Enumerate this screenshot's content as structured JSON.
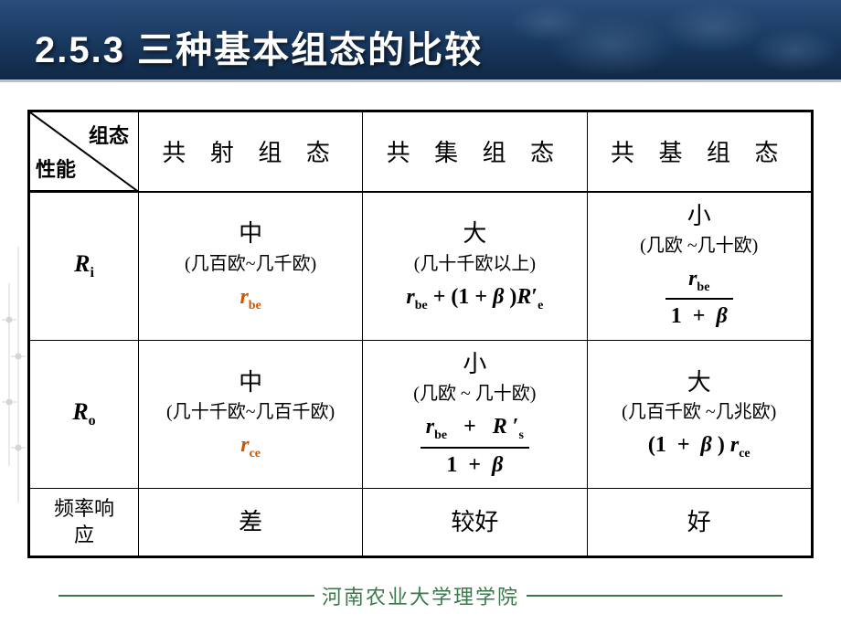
{
  "colors": {
    "header_gradient_top": "#2a4d7a",
    "header_gradient_bottom": "#0f2845",
    "accent": "#cc5500",
    "border": "#000000",
    "footer": "#3a7a4a",
    "background": "#ffffff"
  },
  "title": "2.5.3  三种基本组态的比较",
  "corner": {
    "top": "组态",
    "bottom": "性能"
  },
  "columns": [
    "共 射 组 态",
    "共 集 组 态",
    "共 基 组 态"
  ],
  "rows": {
    "ri": {
      "label_main": "R",
      "label_sub": "i",
      "ce": {
        "mag": "中",
        "range": "(几百欧~几千欧)",
        "expr_html": "<span class='it accent'>r</span><sub class='accent'>be</sub>"
      },
      "cc": {
        "mag": "大",
        "range": "(几十千欧以上)",
        "expr_html": "<span class='it'>r</span><sub>be</sub> + (1 + <span class='it'>β</span> )<span class='it'>R</span>′<sub>e</sub>"
      },
      "cb": {
        "mag": "小",
        "range": "(几欧 ~几十欧)",
        "expr_html": "<span class='frac'><span class='num'><span class='it'>r</span><sub>be</sub></span><span class='den'>1 &nbsp;+&nbsp; <span class='it'>β</span></span></span>"
      }
    },
    "ro": {
      "label_main": "R",
      "label_sub": "o",
      "ce": {
        "mag": "中",
        "range": "(几十千欧~几百千欧)",
        "expr_html": "<span class='it accent'>r</span><sub class='accent'>ce</sub>"
      },
      "cc": {
        "mag": "小",
        "range": "(几欧 ~ 几十欧)",
        "expr_html": "<span class='frac'><span class='num'><span class='it'>r</span><sub>be</sub> &nbsp; + &nbsp; <span class='it'>R</span> ′<sub>s</sub></span><span class='den'>1 &nbsp;+&nbsp; <span class='it'>β</span></span></span>"
      },
      "cb": {
        "mag": "大",
        "range": "(几百千欧 ~几兆欧)",
        "expr_html": "(1 &nbsp;+&nbsp; <span class='it'>β</span> )&nbsp;<span class='it'>r</span><sub>ce</sub>"
      }
    },
    "freq": {
      "label_line1": "频率响",
      "label_line2": "应",
      "ce": "差",
      "cc": "较好",
      "cb": "好"
    }
  },
  "footer": "河南农业大学理学院"
}
